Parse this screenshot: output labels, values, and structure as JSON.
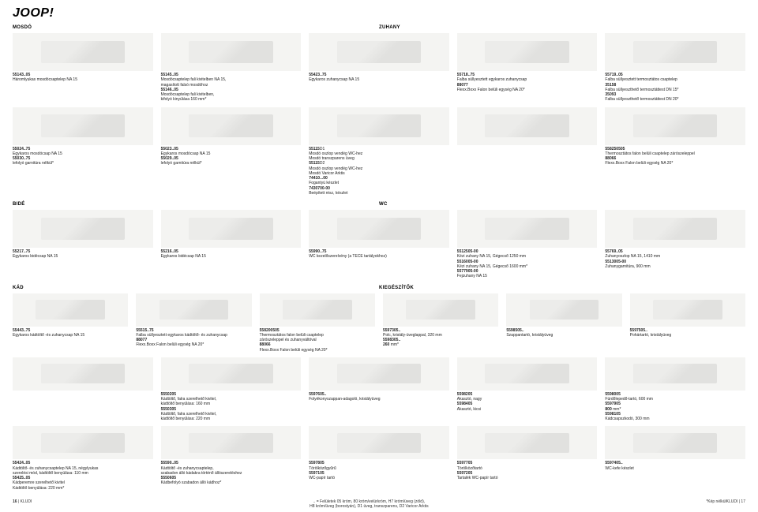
{
  "brand": "JOOP!",
  "labels": {
    "mosdo": "MOSDÓ",
    "zuhany": "ZUHANY",
    "bide": "BIDÉ",
    "wc": "WC",
    "kad": "KÁD",
    "kiegeszitok": "KIEGÉSZÍTŐK"
  },
  "row1": [
    {
      "t": "55143..05\nHáromlyukas mosdócsaptelep NA 15"
    },
    {
      "t": "55145..05\nMosdócsaptelep fali kivitelben NA 15,\nmagasított falsó mosdóhoz\n55146..05\nMosdócsaptelep fali kivitelben,\nkifolyó kinyúlása 160 mm*"
    },
    {
      "t": "55423..75\nEgykaros zuhanycsap NA 15"
    },
    {
      "t": "55718..75\nFalba süllyesztett egykaros zuhanycsap\n88077\nFlexx.Boxx Falon belüli egység NA 20*"
    },
    {
      "t": "55719..05\nFalba süllyesztett termosztátos csaptelep\n35158\nFalba süllyeszthető termosztáttest DN 15*\n35093\nFalba süllyeszthető termosztáttest DN 20*"
    }
  ],
  "row2": [
    {
      "t": "55024..75\nEgykaros mosdócsap NA 15\n55030..75\nlefolyó garnitúra nélkül*"
    },
    {
      "t": "55023..05\nEgykaros mosdócsap NA 15\n55029..05\nlefolyó garnitúra nélkül*"
    },
    {
      "t": "55115D1\nMosdó oszlop vendég WC-hez\nMosdó transzparens üveg\n55115D2\nMosdó oszlop vendég WC-hez\nMosdó Varicor Arktis\n74410...00\nFogantyú készlet\n7430700-00\nBeépített rész, készlet"
    },
    {
      "t": ""
    },
    {
      "t": "558250505\nThermosztátos falon belüli csaptelep zárószeleppel\n88066\nFlexx.Boxx Falon belüli egység NA 20*"
    }
  ],
  "row3": [
    {
      "t": "55217..75\nEgykaros bidécsap NA 15"
    },
    {
      "t": "55216..05\nEgykaros bidécsap NA 15"
    },
    {
      "t": "55990..75\nWC kezelőszerelvény (a TECE tartályokhoz)"
    },
    {
      "t": "5512505-00\nKézi zuhany NA 15, Gégecső 1250 mm\n5516005-00\nKézi zuhany NA 15, Gégecső 1600 mm*\n5577905-00\nFejzuhany NA 15"
    },
    {
      "t": "55769..05\nZuhanyoszlop NA 15, 1410 mm\n5513005-00\nZuhanygarnitúra, 900 mm"
    }
  ],
  "row4": [
    {
      "t": "55443..75\nEgykaros kádtöltő -és zuhanycsap NA 15"
    },
    {
      "t": "55515..75\nFalba süllyesztett egykaros kádtöltő- és zuhanycsap\n88077\nFlexx.Boxx Falon belüli egység NA 20*"
    },
    {
      "t": "558200505\nThermosztátos falon belüli csaptelep\nzárószeleppel és zuhanyváltóval\n88066\nFlexx.Boxx Falon belüli egység NA 20*"
    },
    {
      "t": "5597305..\nPolc, kristály-üveglappal, 320 mm\n5598305..\n260 mm*"
    },
    {
      "t": "5598505..\nSzappantartó, kristályüveg"
    },
    {
      "t": "5597505..\nPohártartó, kristályüveg"
    }
  ],
  "row5": [
    {
      "t": ""
    },
    {
      "t": "5550205\nKádtöltő, falra szerelhető kivitel,\nkádtöltő benyúlása: 160 mm\n5550305\nKádtöltő, falra szerelhető kivitel,\nkádtöltő benyúlása: 220 mm"
    },
    {
      "t": "5597605..\nFolyékonyszappan-adagoló, kristályüveg"
    },
    {
      "t": "5598205\nAkasztó, nagy\n5598405\nAkasztó, kicsi"
    },
    {
      "t": "5598005\nFürdőlepedő-tartó, 600 mm\n5597905\n800 mm*\n5598105\nKádcsapszkodó, 300 mm"
    }
  ],
  "row6": [
    {
      "t": "55424..05\nKádtöltő- és zuhanycsaptelep NA 15, négylyukas\nszerelési mód, kádtöltő benyúlása: 110 mm\n55425..05\nKádperemre szerelhető kivitel\nKádtöltő benyúlása: 220 mm*"
    },
    {
      "t": "55590..05\nKádtöltő -és zuhanycsaptelep,\nszabadon álló kádakra történő állószereléshez\n5550605\nKádbefolyó szabadon álló kádhoz*"
    },
    {
      "t": "5597805\nTörölközőgyűrű\n5597105\nWC-papír tartó"
    },
    {
      "t": "5597705\nTörölközőtartó\n5597205\nTartalék WC-papír tartó"
    },
    {
      "t": "5597405..\nWC-kefe készlet"
    }
  ],
  "footer": {
    "left": "16 | KLUDI",
    "center": ".. = Felületek 05 króm, 80 króm/velúrkróm, H7 króm/üveg (zöld),\nH8 króm/üveg (borostyán), D1 üveg, transzparens, D2 Varicor Arktis",
    "note": "*Kép nélkül",
    "right": "KLUDI | 17"
  }
}
